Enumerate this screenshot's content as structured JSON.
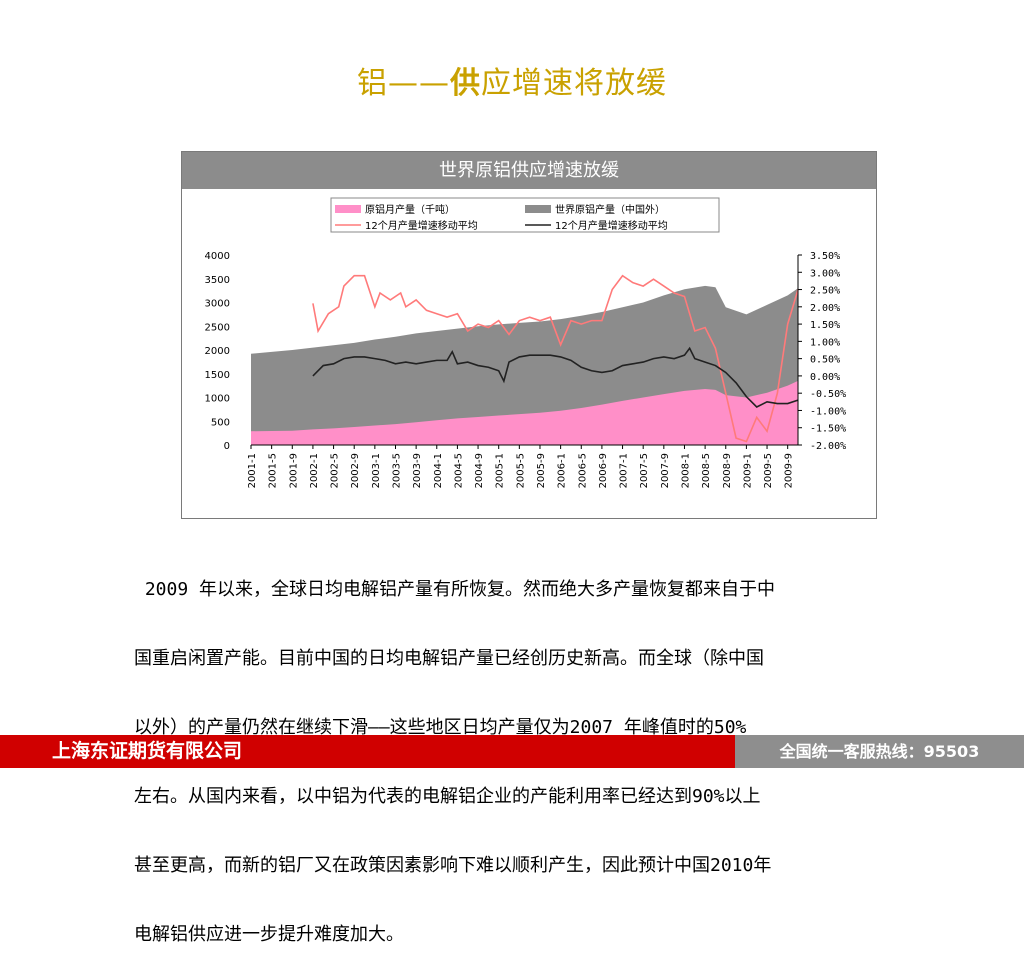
{
  "slide": {
    "title_prefix": "铝——",
    "title_bold": "供",
    "title_suffix": "应增速将放缓",
    "paragraph_lines": [
      " 2009 年以来，全球日均电解铝产量有所恢复。然而绝大多产量恢复都来自于中",
      "国重启闲置产能。目前中国的日均电解铝产量已经创历史新高。而全球（除中国",
      "以外）的产量仍然在继续下滑——这些地区日均产量仅为2007 年峰值时的50%",
      "左右。从国内来看，以中铝为代表的电解铝企业的产能利用率已经达到90%以上",
      "甚至更高，而新的铝厂又在政策因素影响下难以顺利产生，因此预计中国2010年",
      "电解铝供应进一步提升难度加大。"
    ]
  },
  "footer": {
    "company": "上海东证期货有限公司",
    "hotline": "全国统一客服热线：95503"
  },
  "chart_data": {
    "type": "area",
    "title": "世界原铝供应增速放缓",
    "x_ticks": [
      "2001-1",
      "2001-5",
      "2001-9",
      "2002-1",
      "2002-5",
      "2002-9",
      "2003-1",
      "2003-5",
      "2003-9",
      "2004-1",
      "2004-5",
      "2004-9",
      "2005-1",
      "2005-5",
      "2005-9",
      "2006-1",
      "2006-5",
      "2006-9",
      "2007-1",
      "2007-5",
      "2007-9",
      "2008-1",
      "2008-5",
      "2008-9",
      "2009-1",
      "2009-5",
      "2009-9"
    ],
    "y_left": {
      "ylim": [
        0,
        4000
      ],
      "ticks": [
        "0",
        "500",
        "1000",
        "1500",
        "2000",
        "2500",
        "3000",
        "3500",
        "4000"
      ]
    },
    "y_right": {
      "ylim": [
        -2.0,
        3.5
      ],
      "ticks": [
        "3.50%",
        "3.00%",
        "2.50%",
        "2.00%",
        "1.50%",
        "1.00%",
        "0.50%",
        "0.00%",
        "-0.50%",
        "-1.00%",
        "-1.50%",
        "-2.00%"
      ]
    },
    "legend": [
      "原铝月产量（千吨）",
      "世界原铝产量（中国外）",
      "12个月产量增速移动平均",
      "12个月产量增速移动平均"
    ],
    "series": [
      {
        "name": "原铝月产量（千吨）",
        "axis": "left",
        "color": "#ff8fc8",
        "x": [
          0,
          4,
          8,
          12,
          16,
          20,
          24,
          28,
          32,
          36,
          40,
          44,
          48,
          52,
          56,
          60,
          64,
          68,
          72,
          76,
          80,
          84,
          88,
          90,
          92,
          96,
          100,
          104,
          106
        ],
        "values": [
          290,
          295,
          300,
          330,
          350,
          380,
          410,
          440,
          480,
          520,
          560,
          590,
          620,
          650,
          680,
          720,
          780,
          850,
          930,
          1000,
          1070,
          1140,
          1180,
          1160,
          1050,
          1000,
          1100,
          1250,
          1350
        ]
      },
      {
        "name": "世界原铝产量（中国外）",
        "axis": "left",
        "color": "#8c8c8c",
        "x": [
          0,
          4,
          8,
          12,
          16,
          20,
          24,
          28,
          32,
          36,
          40,
          44,
          48,
          52,
          56,
          60,
          64,
          68,
          72,
          76,
          80,
          84,
          88,
          90,
          92,
          96,
          100,
          104,
          106
        ],
        "values": [
          1920,
          1960,
          2000,
          2050,
          2100,
          2150,
          2220,
          2280,
          2350,
          2400,
          2450,
          2500,
          2540,
          2570,
          2600,
          2650,
          2720,
          2800,
          2900,
          3000,
          3150,
          3280,
          3350,
          3320,
          2900,
          2750,
          2950,
          3150,
          3300
        ]
      },
      {
        "name": "12个月产量增速移动平均",
        "axis": "right",
        "color": "#ff7a7a",
        "x": [
          12,
          13,
          15,
          17,
          18,
          20,
          22,
          24,
          25,
          27,
          29,
          30,
          32,
          34,
          36,
          38,
          40,
          42,
          44,
          46,
          48,
          50,
          52,
          54,
          56,
          58,
          60,
          62,
          64,
          66,
          68,
          70,
          72,
          74,
          76,
          78,
          80,
          82,
          84,
          86,
          88,
          90,
          92,
          94,
          96,
          98,
          100,
          102,
          104,
          106
        ],
        "values": [
          2.1,
          1.3,
          1.8,
          2.0,
          2.6,
          2.9,
          2.9,
          2.0,
          2.4,
          2.2,
          2.4,
          2.0,
          2.2,
          1.9,
          1.8,
          1.7,
          1.8,
          1.3,
          1.5,
          1.4,
          1.6,
          1.2,
          1.6,
          1.7,
          1.6,
          1.7,
          0.9,
          1.6,
          1.5,
          1.6,
          1.6,
          2.5,
          2.9,
          2.7,
          2.6,
          2.8,
          2.6,
          2.4,
          2.3,
          1.3,
          1.4,
          0.8,
          -0.5,
          -1.8,
          -1.9,
          -1.2,
          -1.6,
          -0.5,
          1.5,
          2.5
        ]
      },
      {
        "name": "12个月产量增速移动平均",
        "axis": "right",
        "color": "#222222",
        "x": [
          12,
          14,
          16,
          18,
          20,
          22,
          24,
          26,
          28,
          30,
          32,
          34,
          36,
          38,
          39,
          40,
          42,
          44,
          46,
          48,
          49,
          50,
          52,
          54,
          56,
          58,
          60,
          62,
          64,
          66,
          68,
          70,
          72,
          74,
          76,
          78,
          80,
          82,
          84,
          85,
          86,
          88,
          90,
          92,
          94,
          96,
          98,
          100,
          102,
          104,
          106
        ],
        "values": [
          0.0,
          0.3,
          0.35,
          0.5,
          0.55,
          0.55,
          0.5,
          0.45,
          0.35,
          0.4,
          0.35,
          0.4,
          0.45,
          0.45,
          0.7,
          0.35,
          0.4,
          0.3,
          0.25,
          0.15,
          -0.15,
          0.4,
          0.55,
          0.6,
          0.6,
          0.6,
          0.55,
          0.45,
          0.25,
          0.15,
          0.1,
          0.15,
          0.3,
          0.35,
          0.4,
          0.5,
          0.55,
          0.5,
          0.6,
          0.8,
          0.5,
          0.4,
          0.3,
          0.1,
          -0.2,
          -0.6,
          -0.9,
          -0.75,
          -0.8,
          -0.8,
          -0.7
        ]
      }
    ]
  }
}
